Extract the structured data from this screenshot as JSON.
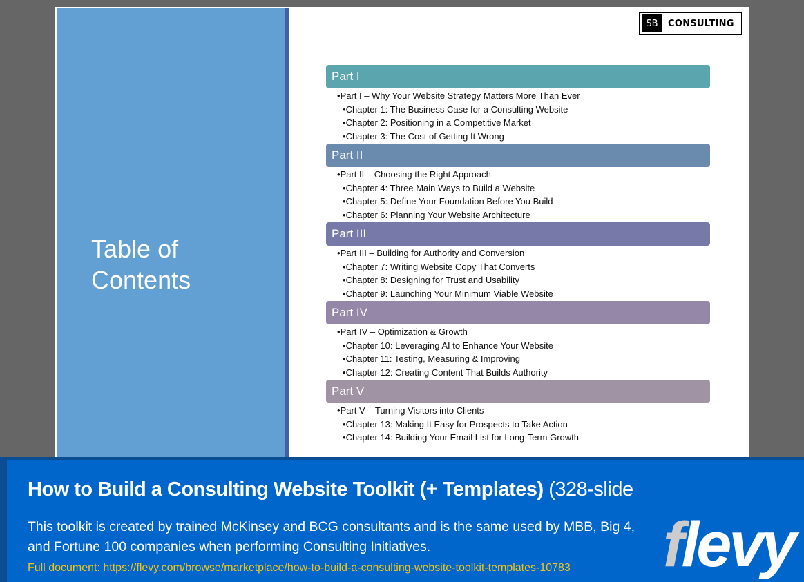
{
  "slide": {
    "title": "Table of Contents",
    "logo": {
      "sb": "SB",
      "name": "CONSULTING"
    },
    "parts": [
      {
        "label": "Part I",
        "color": "#5aa5ae",
        "items": [
          "Part I – Why Your Website Strategy Matters More Than Ever",
          "Chapter 1: The Business Case for a Consulting Website",
          "Chapter 2: Positioning in a Competitive Market",
          "Chapter 3: The Cost of Getting It Wrong"
        ]
      },
      {
        "label": "Part II",
        "color": "#6a8aae",
        "items": [
          "Part II – Choosing the Right Approach",
          "Chapter 4: Three Main Ways to Build a Website",
          "Chapter 5: Define Your Foundation Before You Build",
          "Chapter 6: Planning Your Website Architecture"
        ]
      },
      {
        "label": "Part III",
        "color": "#7779a9",
        "items": [
          "Part III – Building for Authority and Conversion",
          "Chapter 7: Writing Website Copy That Converts",
          "Chapter 8: Designing for Trust and Usability",
          "Chapter 9: Launching Your Minimum Viable Website"
        ]
      },
      {
        "label": "Part IV",
        "color": "#9487a8",
        "items": [
          "Part IV – Optimization & Growth",
          "Chapter 10: Leveraging AI to Enhance Your Website",
          "Chapter 11: Testing, Measuring & Improving",
          "Chapter 12: Creating Content That Builds Authority"
        ]
      },
      {
        "label": "Part V",
        "color": "#a093a4",
        "items": [
          "Part V – Turning Visitors into Clients",
          "Chapter 13: Making It Easy for Prospects to Take Action",
          "Chapter 14: Building Your Email List for Long-Term Growth"
        ]
      }
    ]
  },
  "banner": {
    "title": "How to Build a Consulting Website Toolkit (+ Templates)",
    "title_suffix": "(328-slide",
    "description": "This toolkit is created by trained McKinsey and BCG consultants and is the same used by MBB, Big 4, and Fortune 100 companies when performing Consulting Initiatives.",
    "link": "Full document: https://flevy.com/browse/marketplace/how-to-build-a-consulting-website-toolkit-templates-10783",
    "brand": "flevy"
  }
}
